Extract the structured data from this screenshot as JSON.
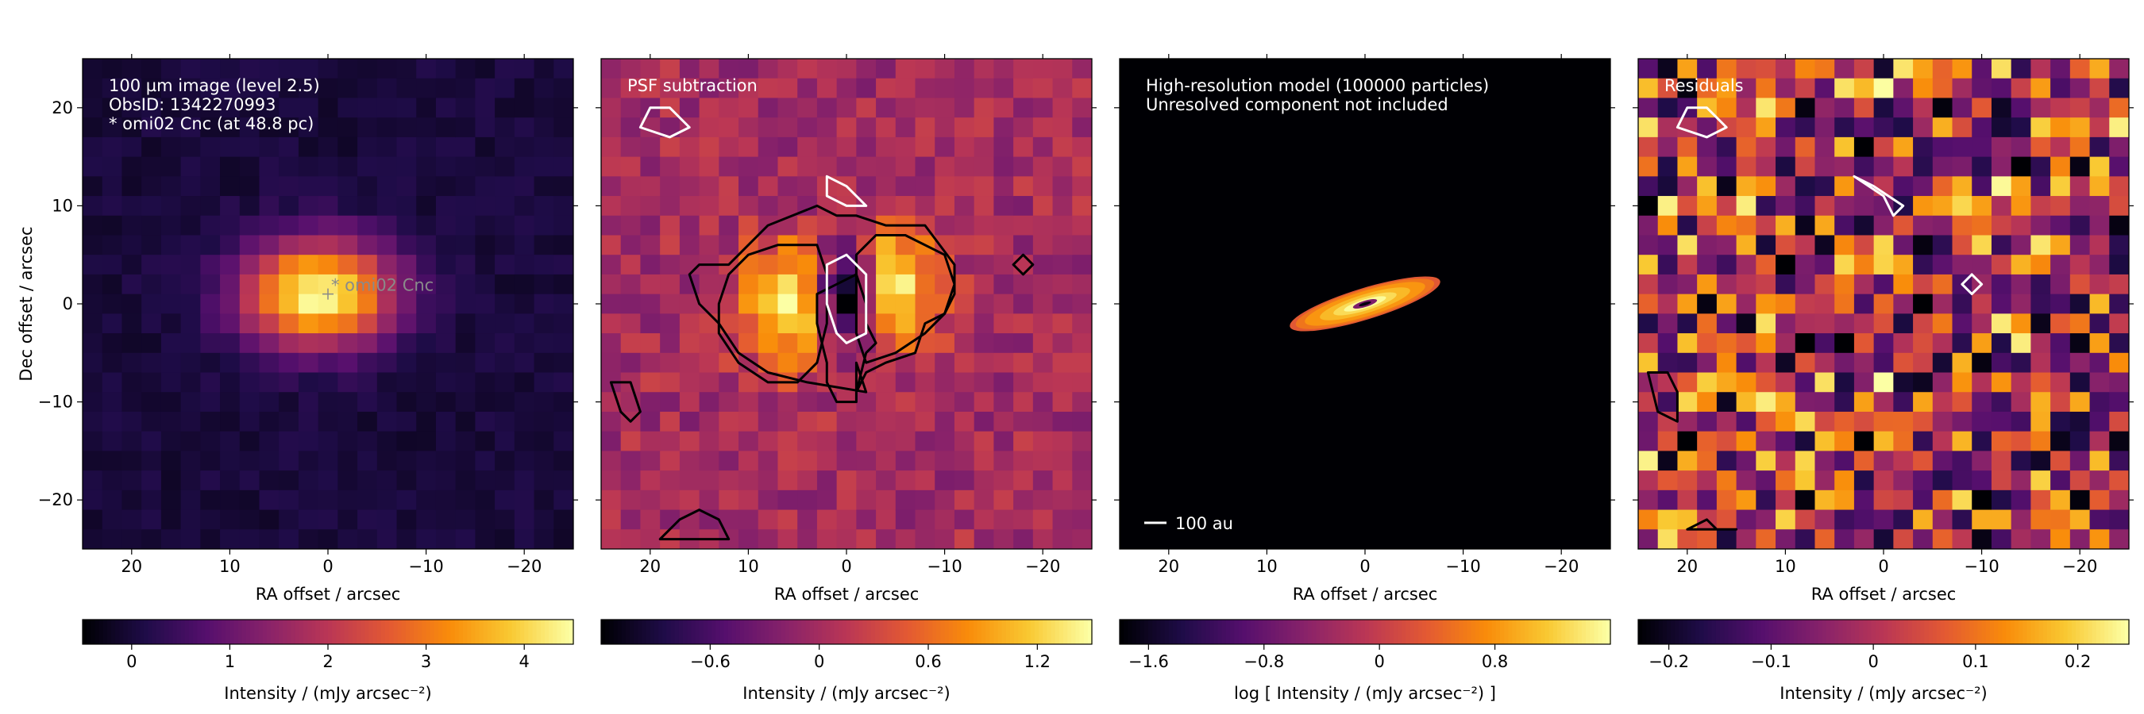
{
  "chart_data": {
    "type": "heatmap",
    "axes": {
      "xlabel": "RA offset / arcsec",
      "ylabel": "Dec offset / arcsec",
      "xlim": [
        25,
        -25
      ],
      "ylim": [
        -25,
        25
      ],
      "xticks": [
        20,
        10,
        0,
        -10,
        -20
      ],
      "xtick_labels": [
        "20",
        "10",
        "0",
        "−10",
        "−20"
      ],
      "yticks": [
        20,
        10,
        0,
        -10,
        -20
      ],
      "ytick_labels": [
        "20",
        "10",
        "0",
        "−10",
        "−20"
      ]
    },
    "panels": [
      {
        "id": "image",
        "colormap": "inferno",
        "pixel_size_arcsec": 2,
        "annotations": [
          "100 µm image (level 2.5)",
          "ObsID: 1342270993",
          "* omi02 Cnc (at 48.8 pc)"
        ],
        "star_marker": {
          "x": 0,
          "y": 1,
          "label": "* omi02 Cnc"
        },
        "colorbar": {
          "ticks": [
            0,
            1,
            2,
            3,
            4
          ],
          "tick_labels": [
            "0",
            "1",
            "2",
            "3",
            "4"
          ],
          "range": [
            -0.5,
            4.5
          ],
          "label": "Intensity / (mJy arcsec⁻²)"
        },
        "source": {
          "x0": 1,
          "y0": 1,
          "sx": 5.5,
          "sy": 3.8,
          "peak": 4.5
        }
      },
      {
        "id": "psf-sub",
        "colormap": "inferno",
        "pixel_size_arcsec": 2,
        "annotations": [
          "PSF subtraction"
        ],
        "colorbar": {
          "ticks": [
            -0.6,
            0,
            0.6,
            1.2
          ],
          "tick_labels": [
            "−0.6",
            "0",
            "0.6",
            "1.2"
          ],
          "range": [
            -1.2,
            1.5
          ],
          "label": "Intensity / (mJy arcsec⁻²)"
        },
        "lobes": [
          {
            "x": 6,
            "y": 0,
            "peak": 1.5
          },
          {
            "x": -5,
            "y": 2,
            "peak": 1.4
          }
        ],
        "hole": {
          "x": 0,
          "y": 1,
          "depth": -1.2
        }
      },
      {
        "id": "model",
        "colormap": "inferno",
        "annotations": [
          "High-resolution model (100000 particles)",
          "Unresolved component not included"
        ],
        "scalebar_label": "100 au",
        "disk": {
          "x0": 0,
          "y0": 0,
          "semi_major": 8,
          "semi_minor": 1.6,
          "pa_deg": 17
        },
        "colorbar": {
          "ticks": [
            -1.6,
            -0.8,
            0,
            0.8
          ],
          "tick_labels": [
            "−1.6",
            "−0.8",
            "0",
            "0.8"
          ],
          "range": [
            -1.8,
            1.6
          ],
          "label": "log [ Intensity / (mJy arcsec⁻²) ]"
        }
      },
      {
        "id": "residuals",
        "colormap": "inferno",
        "pixel_size_arcsec": 2,
        "annotations": [
          "Residuals"
        ],
        "colorbar": {
          "ticks": [
            -0.2,
            -0.1,
            0,
            0.1,
            0.2
          ],
          "tick_labels": [
            "−0.2",
            "−0.1",
            "0",
            "0.1",
            "0.2"
          ],
          "range": [
            -0.23,
            0.25
          ],
          "label": "Intensity / (mJy arcsec⁻²)"
        }
      }
    ],
    "contours": {
      "psf-sub": [
        {
          "level": "positive",
          "color": "#000000",
          "points": [
            [
              15,
              4
            ],
            [
              12,
              4
            ],
            [
              8,
              8
            ],
            [
              3,
              10
            ],
            [
              1,
              9
            ],
            [
              -1,
              9
            ],
            [
              -4,
              8
            ],
            [
              -8,
              8
            ],
            [
              -11,
              4
            ],
            [
              -11,
              1
            ],
            [
              -10,
              -1
            ],
            [
              -8,
              -2
            ],
            [
              -7,
              -5
            ],
            [
              -4,
              -6
            ],
            [
              -2,
              -7
            ],
            [
              -1,
              -9
            ],
            [
              -2,
              -5
            ],
            [
              -3,
              -4
            ],
            [
              -2,
              -2
            ],
            [
              -2,
              0
            ],
            [
              -1,
              3
            ],
            [
              1,
              2
            ],
            [
              3,
              1
            ],
            [
              3,
              -2
            ],
            [
              2,
              -6
            ],
            [
              2,
              -8
            ],
            [
              1,
              -10
            ],
            [
              -1,
              -10
            ],
            [
              -1,
              -6
            ],
            [
              -2,
              -9
            ],
            [
              4,
              -8
            ],
            [
              8,
              -7
            ],
            [
              11,
              -5
            ],
            [
              13,
              -2
            ],
            [
              15,
              0
            ],
            [
              16,
              3
            ],
            [
              15,
              4
            ]
          ]
        },
        {
          "level": "positive",
          "color": "#000000",
          "points": [
            [
              12,
              3
            ],
            [
              10,
              5
            ],
            [
              7,
              6
            ],
            [
              3,
              6
            ],
            [
              2,
              3
            ],
            [
              2,
              -2
            ],
            [
              3,
              -6
            ],
            [
              5,
              -8
            ],
            [
              8,
              -8
            ],
            [
              11,
              -6
            ],
            [
              13,
              -3
            ],
            [
              13,
              0
            ],
            [
              12,
              3
            ]
          ]
        },
        {
          "level": "positive",
          "color": "#000000",
          "points": [
            [
              -1,
              5
            ],
            [
              -3,
              7
            ],
            [
              -6,
              7
            ],
            [
              -10,
              5
            ],
            [
              -11,
              2
            ],
            [
              -10,
              -1
            ],
            [
              -8,
              -3
            ],
            [
              -5,
              -5
            ],
            [
              -2,
              -6
            ],
            [
              -1,
              -3
            ],
            [
              -1,
              1
            ],
            [
              -1,
              5
            ]
          ]
        },
        {
          "level": "negative",
          "color": "#ffffff",
          "points": [
            [
              0,
              5
            ],
            [
              2,
              4
            ],
            [
              2,
              0
            ],
            [
              1,
              -3
            ],
            [
              0,
              -4
            ],
            [
              -2,
              -3
            ],
            [
              -2,
              0
            ],
            [
              -2,
              3
            ],
            [
              0,
              5
            ]
          ]
        },
        {
          "level": "negative",
          "color": "#ffffff",
          "points": [
            [
              20,
              20
            ],
            [
              21,
              18
            ],
            [
              18,
              17
            ],
            [
              16,
              18
            ],
            [
              18,
              20
            ],
            [
              20,
              20
            ]
          ]
        },
        {
          "level": "negative",
          "color": "#ffffff",
          "points": [
            [
              2,
              13
            ],
            [
              0,
              12
            ],
            [
              -2,
              10
            ],
            [
              0,
              10
            ],
            [
              2,
              11
            ],
            [
              2,
              13
            ]
          ]
        },
        {
          "level": "positive",
          "color": "#000000",
          "points": [
            [
              24,
              -8
            ],
            [
              23,
              -11
            ],
            [
              22,
              -12
            ],
            [
              21,
              -11
            ],
            [
              22,
              -8
            ],
            [
              24,
              -8
            ]
          ]
        },
        {
          "level": "positive",
          "color": "#000000",
          "points": [
            [
              19,
              -24
            ],
            [
              17,
              -22
            ],
            [
              15,
              -21
            ],
            [
              13,
              -22
            ],
            [
              12,
              -24
            ],
            [
              15,
              -24
            ],
            [
              19,
              -24
            ]
          ]
        },
        {
          "level": "positive",
          "color": "#000000",
          "points": [
            [
              -18,
              5
            ],
            [
              -17,
              4
            ],
            [
              -18,
              3
            ],
            [
              -19,
              4
            ],
            [
              -18,
              5
            ]
          ]
        }
      ],
      "residuals": [
        {
          "level": "negative",
          "color": "#ffffff",
          "points": [
            [
              20,
              20
            ],
            [
              21,
              18
            ],
            [
              18,
              17
            ],
            [
              16,
              18
            ],
            [
              18,
              20
            ],
            [
              20,
              20
            ]
          ]
        },
        {
          "level": "negative",
          "color": "#ffffff",
          "points": [
            [
              3,
              13
            ],
            [
              1,
              12
            ],
            [
              -2,
              10
            ],
            [
              -1,
              9
            ],
            [
              0,
              11
            ],
            [
              3,
              13
            ]
          ]
        },
        {
          "level": "positive",
          "color": "#000000",
          "points": [
            [
              24,
              -7
            ],
            [
              23,
              -11
            ],
            [
              21,
              -12
            ],
            [
              21,
              -9
            ],
            [
              22,
              -7
            ],
            [
              24,
              -7
            ]
          ]
        },
        {
          "level": "positive",
          "color": "#000000",
          "points": [
            [
              20,
              -23
            ],
            [
              18,
              -22
            ],
            [
              17,
              -23
            ],
            [
              16,
              -23
            ],
            [
              15,
              -23
            ],
            [
              18,
              -23
            ],
            [
              20,
              -23
            ]
          ]
        },
        {
          "level": "negative",
          "color": "#ffffff",
          "points": [
            [
              -8,
              2
            ],
            [
              -9,
              1
            ],
            [
              -10,
              2
            ],
            [
              -9,
              3
            ],
            [
              -8,
              2
            ]
          ]
        }
      ]
    }
  }
}
